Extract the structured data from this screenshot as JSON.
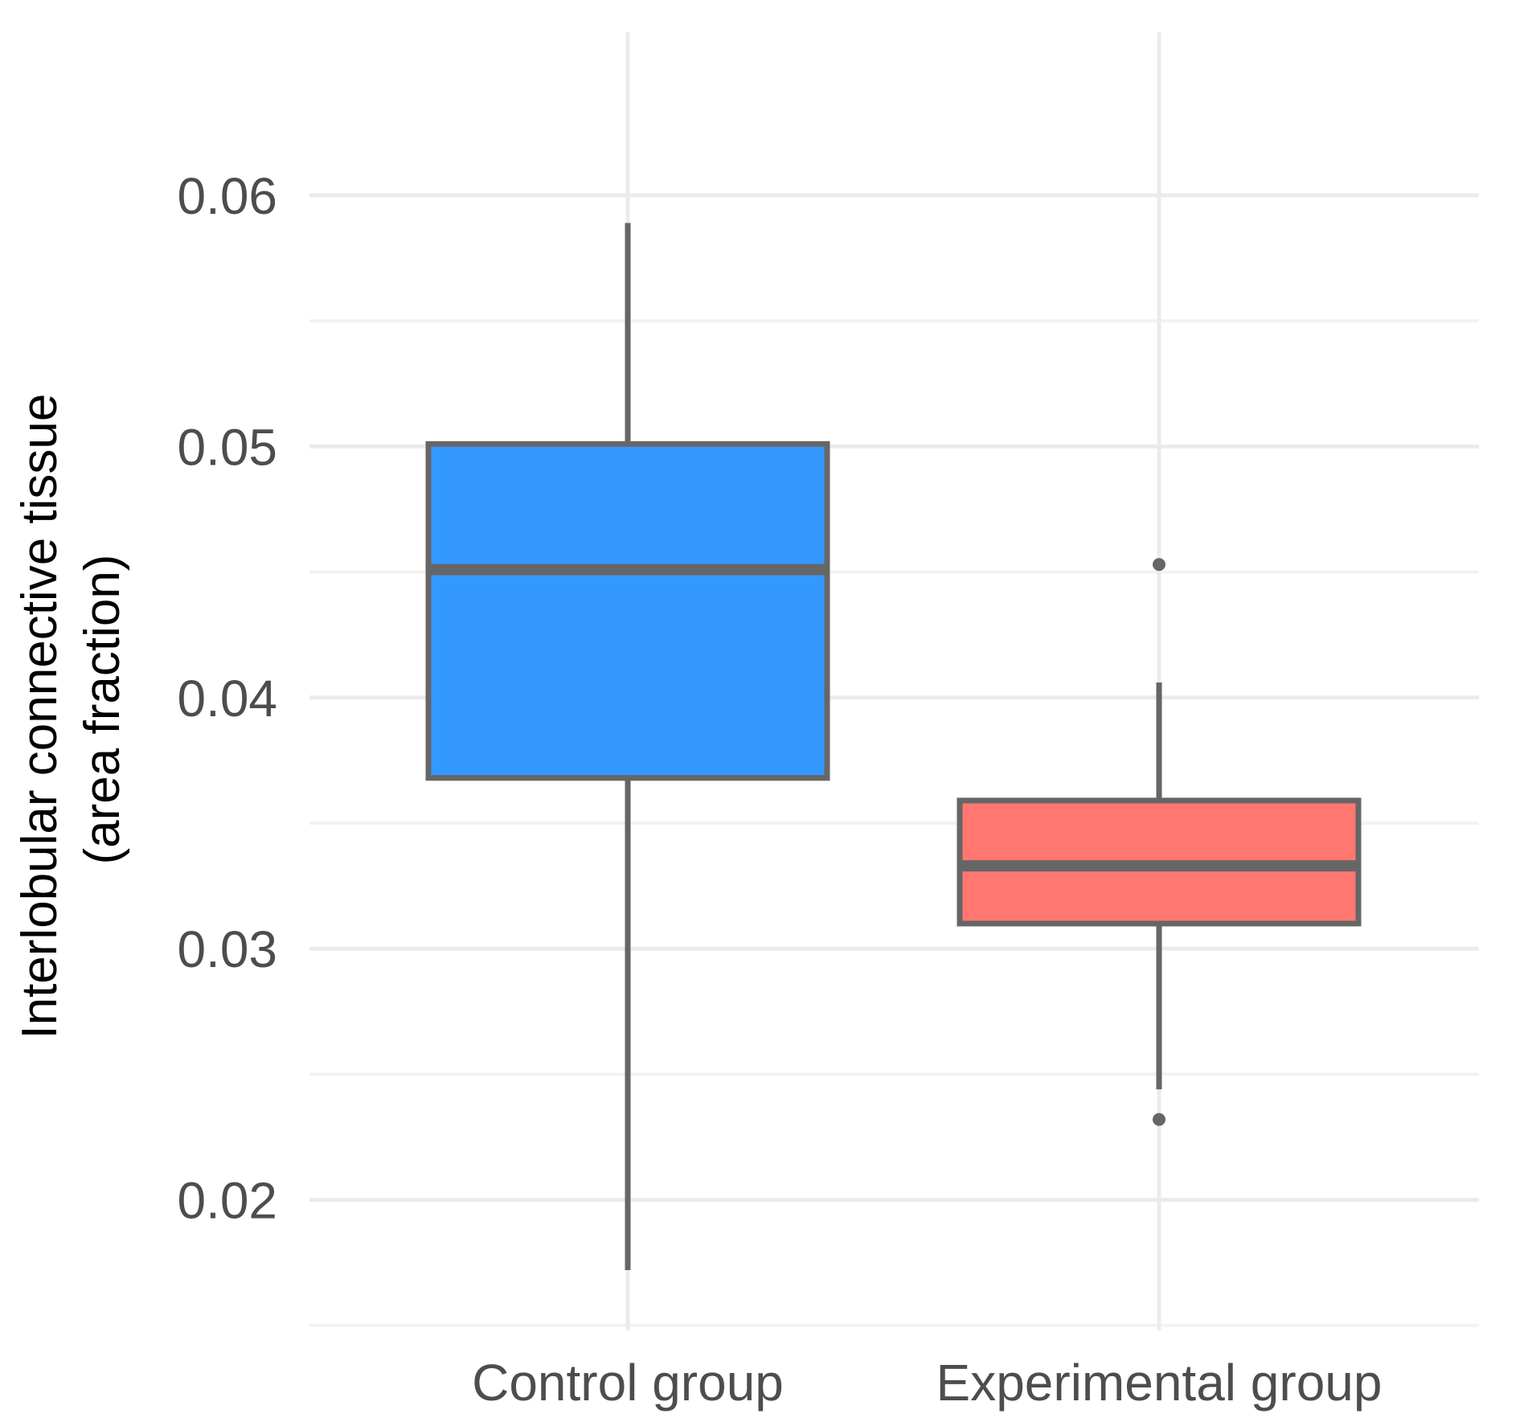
{
  "chart_data": {
    "type": "boxplot",
    "title": "",
    "xlabel": "",
    "ylabel_lines": [
      "Interlobular connective tissue",
      "(area fraction)"
    ],
    "ylim": [
      0.0148,
      0.0665
    ],
    "y_ticks": [
      0.02,
      0.03,
      0.04,
      0.05,
      0.06
    ],
    "y_tick_labels": [
      "0.02",
      "0.03",
      "0.04",
      "0.05",
      "0.06"
    ],
    "y_minor_ticks": [
      0.015,
      0.025,
      0.035,
      0.045,
      0.055
    ],
    "categories": [
      "Control group",
      "Experimental group"
    ],
    "boxes": [
      {
        "name": "Control group",
        "whisker_low": 0.0172,
        "q1": 0.0368,
        "median": 0.0451,
        "q3": 0.0501,
        "whisker_high": 0.0589,
        "outliers": [],
        "fill": "#3399FF"
      },
      {
        "name": "Experimental group",
        "whisker_low": 0.0244,
        "q1": 0.031,
        "median": 0.0333,
        "q3": 0.0359,
        "whisker_high": 0.0406,
        "outliers": [
          0.0453,
          0.0232
        ],
        "fill": "#FF7770"
      }
    ],
    "grid": true,
    "legend": "none"
  }
}
